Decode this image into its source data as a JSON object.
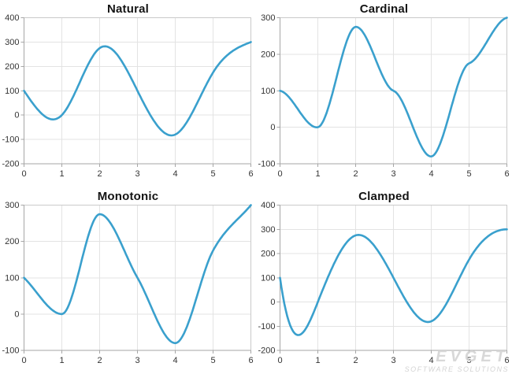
{
  "colors": {
    "line": "#3AA0CD",
    "grid": "#E3E3E3",
    "border": "#CACACA",
    "axis": "#A6A6A6",
    "tick_label": "#333333",
    "title": "#141414",
    "watermark": "#D4D4D4",
    "background": "#FFFFFF"
  },
  "watermark": {
    "line1": "EVGET",
    "line2": "SOFTWARE SOLUTIONS"
  },
  "chart_data": [
    {
      "type": "line",
      "title": "Natural",
      "interpolation": "natural",
      "x": [
        0,
        1,
        2,
        3,
        4,
        5,
        6
      ],
      "y": [
        100,
        0,
        275,
        100,
        -80,
        175,
        300
      ],
      "xlim": [
        0,
        6
      ],
      "ylim": [
        -200,
        400
      ],
      "x_ticks": [
        0,
        1,
        2,
        3,
        4,
        5,
        6
      ],
      "y_ticks": [
        400,
        300,
        200,
        100,
        0,
        -100,
        -200
      ],
      "grid": true,
      "legend": false
    },
    {
      "type": "line",
      "title": "Cardinal",
      "interpolation": "cardinal",
      "tension": 0.8,
      "x": [
        0,
        1,
        2,
        3,
        4,
        5,
        6
      ],
      "y": [
        100,
        0,
        275,
        100,
        -80,
        175,
        300
      ],
      "xlim": [
        0,
        6
      ],
      "ylim": [
        -100,
        300
      ],
      "x_ticks": [
        0,
        1,
        2,
        3,
        4,
        5,
        6
      ],
      "y_ticks": [
        300,
        200,
        100,
        0,
        -100
      ],
      "grid": true,
      "legend": false
    },
    {
      "type": "line",
      "title": "Monotonic",
      "interpolation": "monotonic",
      "x": [
        0,
        1,
        2,
        3,
        4,
        5,
        6
      ],
      "y": [
        100,
        0,
        275,
        100,
        -80,
        175,
        300
      ],
      "xlim": [
        0,
        6
      ],
      "ylim": [
        -100,
        300
      ],
      "x_ticks": [
        0,
        1,
        2,
        3,
        4,
        5,
        6
      ],
      "y_ticks": [
        300,
        200,
        100,
        0,
        -100
      ],
      "grid": true,
      "legend": false
    },
    {
      "type": "line",
      "title": "Clamped",
      "interpolation": "clamped",
      "clamped_slopes": [
        -1100,
        0
      ],
      "x": [
        0,
        1,
        2,
        3,
        4,
        5,
        6
      ],
      "y": [
        100,
        0,
        275,
        100,
        -80,
        175,
        300
      ],
      "xlim": [
        0,
        6
      ],
      "ylim": [
        -200,
        400
      ],
      "x_ticks": [
        0,
        1,
        2,
        3,
        4,
        5,
        6
      ],
      "y_ticks": [
        400,
        300,
        200,
        100,
        0,
        -100,
        -200
      ],
      "grid": true,
      "legend": false
    }
  ]
}
